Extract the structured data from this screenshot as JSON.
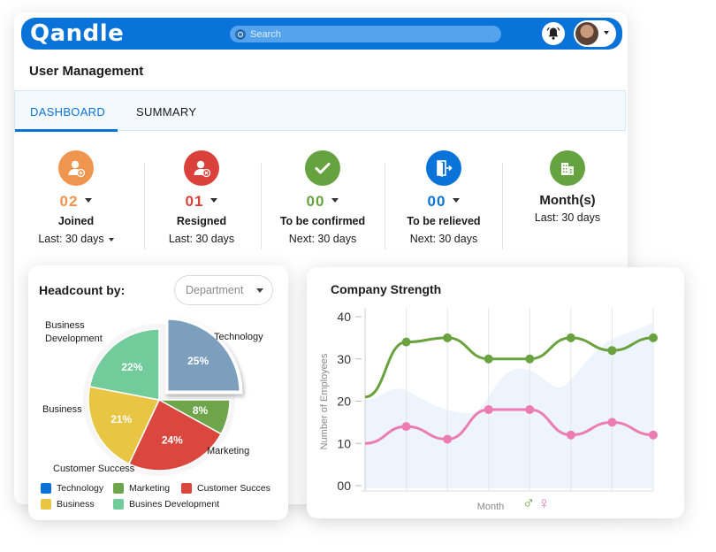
{
  "app": {
    "logo": "Qandle",
    "search_placeholder": "Search",
    "brand_color": "#0a73d9"
  },
  "page_title": "User Management",
  "tabs": [
    {
      "label": "DASHBOARD",
      "active": true
    },
    {
      "label": "SUMMARY",
      "active": false
    }
  ],
  "stats": [
    {
      "value": "02",
      "label": "Joined",
      "sub": "Last: 30 days",
      "color": "#f0954e",
      "icon": "user-add-icon",
      "sub_dropdown": true
    },
    {
      "value": "01",
      "label": "Resigned",
      "sub": "Last: 30 days",
      "color": "#d9413a",
      "icon": "user-remove-icon",
      "sub_dropdown": false
    },
    {
      "value": "00",
      "label": "To be confirmed",
      "sub": "Next: 30 days",
      "color": "#66a340",
      "icon": "checkmark-icon",
      "sub_dropdown": false
    },
    {
      "value": "00",
      "label": "To be relieved",
      "sub": "Next: 30 days",
      "color": "#0a73d9",
      "icon": "exit-door-icon",
      "sub_dropdown": false
    },
    {
      "value": "",
      "label": "Month(s)",
      "sub": "Last: 30 days",
      "color": "#66a340",
      "icon": "buildings-icon",
      "sub_dropdown": false
    }
  ],
  "headcount": {
    "title": "Headcount by:",
    "select_value": "Department",
    "legend": [
      "Technology",
      "Marketing",
      "Customer Succes",
      "Business",
      "Busines Development"
    ]
  },
  "company_strength": {
    "title": "Company Strength",
    "male_symbol": "♂",
    "female_symbol": "♀"
  },
  "chart_data": [
    {
      "type": "pie",
      "labels": [
        "Technology",
        "Marketing",
        "Customer Success",
        "Business",
        "Business Development"
      ],
      "values": [
        25,
        8,
        24,
        21,
        22
      ],
      "display_labels": [
        "25%",
        "8%",
        "24%",
        "21%",
        "22%"
      ],
      "colors": [
        "#7d9fbe",
        "#6fa54a",
        "#d9473e",
        "#e9c544",
        "#72cb9b"
      ],
      "exploded": "Technology"
    },
    {
      "type": "line",
      "title": "Company Strength",
      "xlabel": "Month",
      "ylabel": "Number of Employees",
      "ylim": [
        0,
        40
      ],
      "yticks": [
        0,
        10,
        20,
        30,
        40
      ],
      "x": [
        0,
        1,
        2,
        3,
        4,
        5,
        6,
        7
      ],
      "series": [
        {
          "color": "#6aa23f",
          "values": [
            21,
            34,
            35,
            30,
            30,
            35,
            32,
            35
          ],
          "points": [
            1,
            2,
            3,
            4,
            5,
            6,
            7
          ]
        },
        {
          "color": "#ec7db3",
          "values": [
            10,
            14,
            11,
            18,
            18,
            12,
            15,
            12
          ],
          "points": [
            1,
            2,
            3,
            4,
            5,
            6,
            7
          ]
        }
      ]
    }
  ]
}
